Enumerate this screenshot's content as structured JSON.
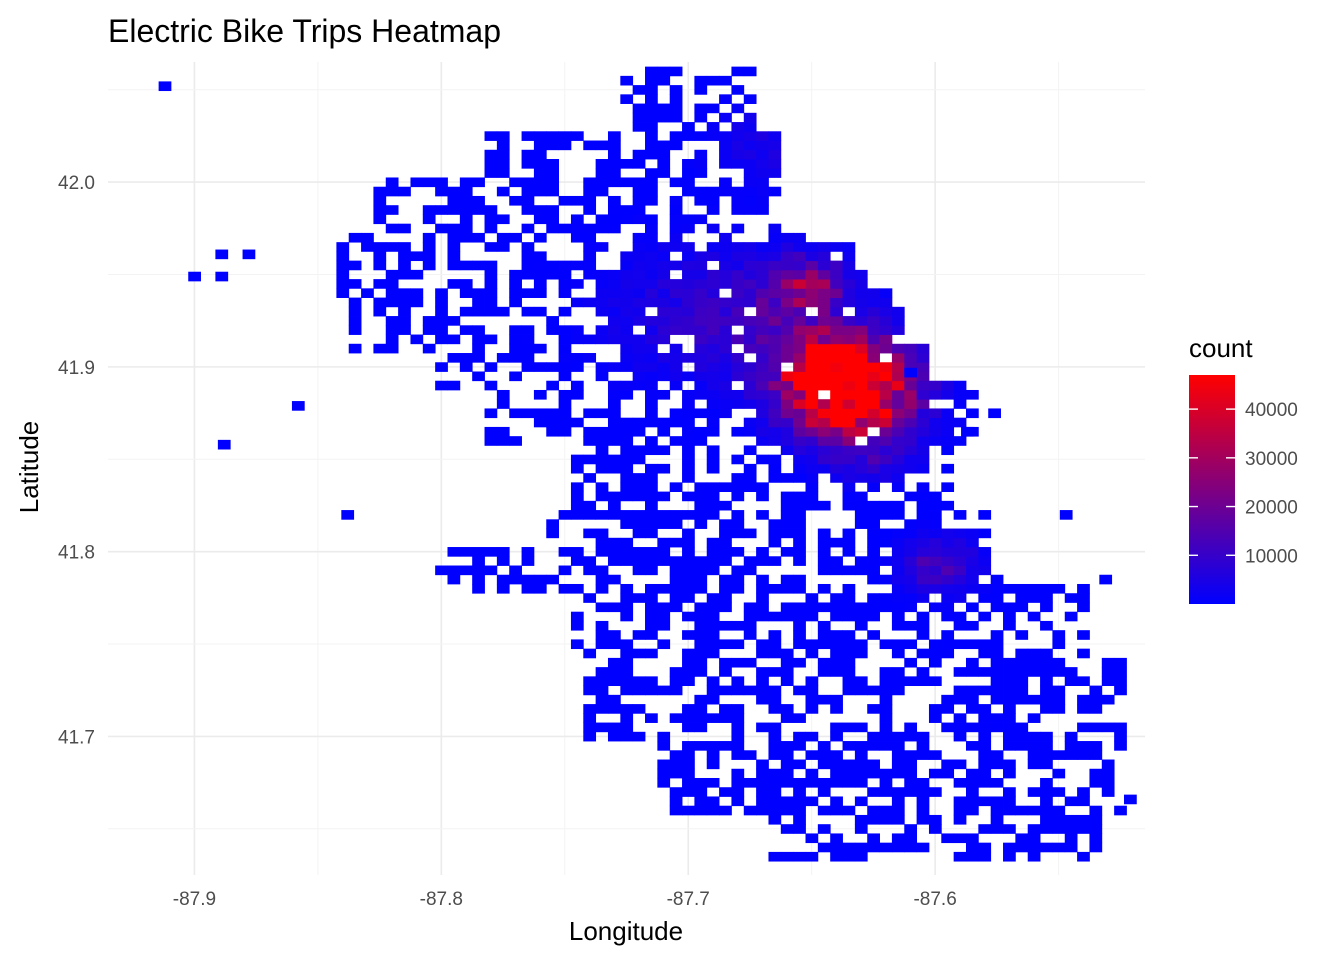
{
  "chart_data": {
    "type": "heatmap",
    "title": "Electric Bike Trips Heatmap",
    "xlabel": "Longitude",
    "ylabel": "Latitude",
    "xlim": [
      -87.935,
      -87.515
    ],
    "ylim": [
      41.625,
      42.065
    ],
    "x_ticks": [
      -87.9,
      -87.8,
      -87.7,
      -87.6
    ],
    "x_tick_labels": [
      "-87.9",
      "-87.8",
      "-87.7",
      "-87.6"
    ],
    "y_ticks": [
      41.7,
      41.8,
      41.9,
      42.0
    ],
    "y_tick_labels": [
      "41.7",
      "41.8",
      "41.9",
      "42.0"
    ],
    "grid": true,
    "bin_size": [
      0.005,
      0.005
    ],
    "colorscale": {
      "low": "#0000ff",
      "high": "#ff0000",
      "min": 1,
      "max": 47000
    },
    "legend": {
      "title": "count",
      "position": "right",
      "ticks": [
        10000,
        20000,
        30000,
        40000
      ],
      "tick_labels": [
        "10000",
        "20000",
        "30000",
        "40000"
      ]
    },
    "hotspots": [
      {
        "lon": -87.636,
        "lat": 41.884,
        "count": 46000,
        "spread": 0.016
      },
      {
        "lon": -87.645,
        "lat": 41.902,
        "count": 30000,
        "spread": 0.012
      },
      {
        "lon": -87.652,
        "lat": 41.944,
        "count": 26000,
        "spread": 0.01
      },
      {
        "lon": -87.632,
        "lat": 41.893,
        "count": 24000,
        "spread": 0.018
      },
      {
        "lon": -87.598,
        "lat": 41.793,
        "count": 15000,
        "spread": 0.01
      },
      {
        "lon": -87.665,
        "lat": 41.925,
        "count": 9000,
        "spread": 0.022
      },
      {
        "lon": -87.7,
        "lat": 41.93,
        "count": 6000,
        "spread": 0.025
      },
      {
        "lon": -87.668,
        "lat": 42.02,
        "count": 5000,
        "spread": 0.015
      },
      {
        "lon": -87.625,
        "lat": 41.855,
        "count": 7000,
        "spread": 0.012
      }
    ],
    "coverage": [
      {
        "lat": [
          41.635,
          41.66
        ],
        "lon": [
          -87.665,
          -87.535
        ]
      },
      {
        "lat": [
          41.66,
          41.7
        ],
        "lon": [
          -87.71,
          -87.525
        ]
      },
      {
        "lat": [
          41.7,
          41.74
        ],
        "lon": [
          -87.74,
          -87.525
        ]
      },
      {
        "lat": [
          41.74,
          41.78
        ],
        "lon": [
          -87.745,
          -87.54
        ]
      },
      {
        "lat": [
          41.78,
          41.8
        ],
        "lon": [
          -87.8,
          -87.575
        ]
      },
      {
        "lat": [
          41.8,
          41.82
        ],
        "lon": [
          -87.755,
          -87.58
        ]
      },
      {
        "lat": [
          41.82,
          41.86
        ],
        "lon": [
          -87.745,
          -87.595
        ]
      },
      {
        "lat": [
          41.86,
          41.89
        ],
        "lon": [
          -87.78,
          -87.585
        ]
      },
      {
        "lat": [
          41.89,
          41.91
        ],
        "lon": [
          -87.8,
          -87.605
        ]
      },
      {
        "lat": [
          41.91,
          41.94
        ],
        "lon": [
          -87.835,
          -87.615
        ]
      },
      {
        "lat": [
          41.94,
          41.97
        ],
        "lon": [
          -87.84,
          -87.63
        ]
      },
      {
        "lat": [
          41.97,
          42.0
        ],
        "lon": [
          -87.825,
          -87.665
        ]
      },
      {
        "lat": [
          42.0,
          42.025
        ],
        "lon": [
          -87.78,
          -87.665
        ]
      },
      {
        "lat": [
          42.025,
          42.06
        ],
        "lon": [
          -87.725,
          -87.675
        ]
      }
    ],
    "outliers": [
      {
        "lon": -87.912,
        "lat": 42.052,
        "count": 1
      },
      {
        "lon": -87.9,
        "lat": 41.949,
        "count": 1
      },
      {
        "lon": -87.889,
        "lat": 41.949,
        "count": 1
      },
      {
        "lon": -87.878,
        "lat": 41.961,
        "count": 1
      },
      {
        "lon": -87.889,
        "lat": 41.961,
        "count": 1
      },
      {
        "lon": -87.858,
        "lat": 41.879,
        "count": 1
      },
      {
        "lon": -87.888,
        "lat": 41.858,
        "count": 1
      },
      {
        "lon": -87.838,
        "lat": 41.82,
        "count": 1
      },
      {
        "lon": -87.547,
        "lat": 41.82,
        "count": 1
      },
      {
        "lon": -87.531,
        "lat": 41.785,
        "count": 1
      },
      {
        "lon": -87.521,
        "lat": 41.666,
        "count": 1
      },
      {
        "lon": -87.61,
        "lat": 41.897,
        "count": 1
      },
      {
        "lon": -87.576,
        "lat": 41.875,
        "count": 1
      },
      {
        "lon": -87.587,
        "lat": 41.865,
        "count": 1
      }
    ]
  }
}
